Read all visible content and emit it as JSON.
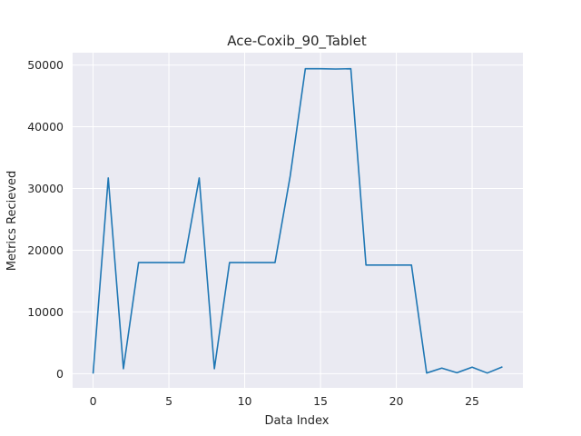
{
  "chart_data": {
    "type": "line",
    "title": "Ace-Coxib_90_Tablet",
    "xlabel": "Data Index",
    "ylabel": "Metrics Recieved",
    "xlim": [
      -1.35,
      28.35
    ],
    "ylim": [
      -2300,
      52000
    ],
    "xticks": [
      0,
      5,
      10,
      15,
      20,
      25
    ],
    "yticks": [
      0,
      10000,
      20000,
      30000,
      40000,
      50000
    ],
    "grid": true,
    "series": [
      {
        "color": "#1f77b4",
        "x": [
          0,
          1,
          2,
          3,
          4,
          5,
          6,
          7,
          8,
          9,
          10,
          11,
          12,
          13,
          14,
          15,
          16,
          17,
          18,
          19,
          20,
          21,
          22,
          23,
          24,
          25,
          26,
          27
        ],
        "y": [
          0,
          31700,
          800,
          18000,
          18000,
          18000,
          18000,
          31700,
          800,
          18000,
          18000,
          18000,
          18000,
          32000,
          49400,
          49400,
          49350,
          49400,
          17600,
          17600,
          17600,
          17600,
          100,
          900,
          150,
          1050,
          100,
          1100
        ]
      }
    ]
  }
}
